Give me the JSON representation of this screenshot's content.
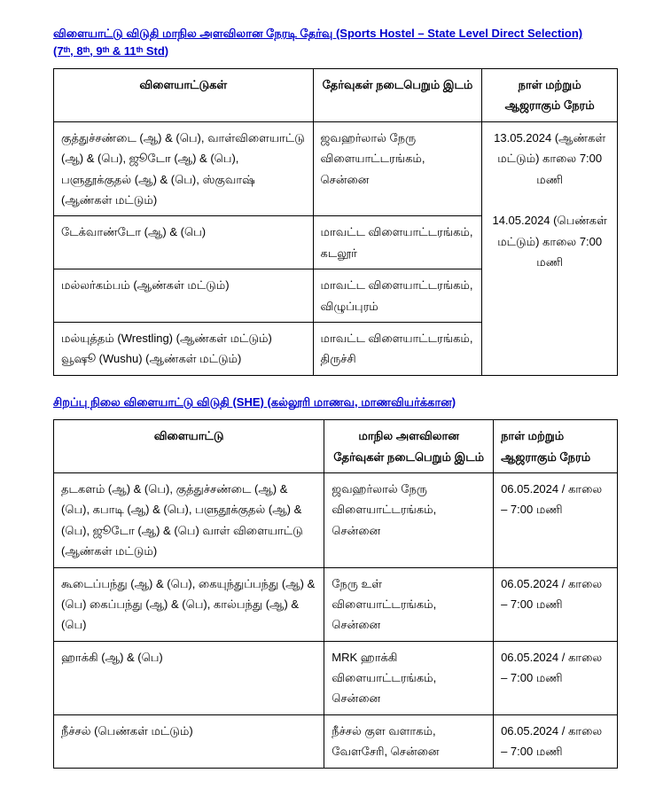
{
  "section1": {
    "title_line1": "விளையாட்டு விடுதி மாநில அளவிலான நேரடி தேர்வு (Sports Hostel – State Level Direct Selection)",
    "title_line2": "(7ᵗʰ, 8ᵗʰ, 9ᵗʰ & 11ᵗʰ Std)",
    "headers": {
      "sport": "விளையாட்டுகள்",
      "venue": "தேர்வுகள் நடைபெறும் இடம்",
      "date": "நாள் மற்றும் ஆஜராகும் நேரம்"
    },
    "rows": [
      {
        "sport": "குத்துச்சண்டை (ஆ) & (பெ),  வாள்விளையாட்டு (ஆ) & (பெ), ஜூடோ  (ஆ) & (பெ), பளுதூக்குதல் (ஆ) & (பெ),  ஸ்குவாஷ் (ஆண்கள் மட்டும்)",
        "venue": "ஜவஹர்லால் நேரு விளையாட்டரங்கம், சென்னை"
      },
      {
        "sport": "டேக்வாண்டோ (ஆ) & (பெ)",
        "venue": "மாவட்ட விளையாட்டரங்கம், கடலூர்"
      },
      {
        "sport": "மல்லர்கம்பம் (ஆண்கள் மட்டும்)",
        "venue": "மாவட்ட விளையாட்டரங்கம், விழுப்புரம்"
      },
      {
        "sport": "மல்யுத்தம் (Wrestling) (ஆண்கள் மட்டும்) வூஷூ (Wushu) (ஆண்கள் மட்டும்)",
        "venue": "மாவட்ட விளையாட்டரங்கம், திருச்சி"
      }
    ],
    "date_block": "13.05.2024 (ஆண்கள் மட்டும்) காலை 7:00 மணி\n\n14.05.2024 (பெண்கள் மட்டும்) காலை 7:00 மணி"
  },
  "section2": {
    "title": "சிறப்பு நிலை விளையாட்டு விடுதி (SHE) (கல்லூரி மாணவ, மாணவியர்க்கான)",
    "headers": {
      "sport": "விளையாட்டு",
      "venue": "மாநில அளவிலான தேர்வுகள் நடைபெறும் இடம்",
      "date": "நாள் மற்றும் ஆஜராகும் நேரம்"
    },
    "rows": [
      {
        "sport": "தடகளம் (ஆ) & (பெ), குத்துச்சண்டை (ஆ) & (பெ), கபாடி (ஆ) & (பெ), பளுதூக்குதல் (ஆ) & (பெ), ஜூடோ (ஆ) & (பெ) வாள் விளையாட்டு (ஆண்கள் மட்டும்)",
        "venue": "ஜவஹர்லால் நேரு விளையாட்டரங்கம், சென்னை",
        "date": "06.05.2024 / காலை – 7:00 மணி"
      },
      {
        "sport": "கூடைப்பந்து  (ஆ) & (பெ), கையுந்துப்பந்து  (ஆ) & (பெ) கைப்பந்து  (ஆ) & (பெ), கால்பந்து  (ஆ) & (பெ)",
        "venue": "நேரு உள் விளையாட்டரங்கம், சென்னை",
        "date": "06.05.2024 / காலை – 7:00 மணி"
      },
      {
        "sport": "ஹாக்கி (ஆ) & (பெ)",
        "venue": "MRK ஹாக்கி விளையாட்டரங்கம், சென்னை",
        "date": "06.05.2024 / காலை – 7:00 மணி"
      },
      {
        "sport": "நீச்சல் (பெண்கள் மட்டும்)",
        "venue": "நீச்சல் குள வளாகம், வேளசேரி, சென்னை",
        "date": "06.05.2024 / காலை – 7:00 மணி"
      }
    ]
  }
}
